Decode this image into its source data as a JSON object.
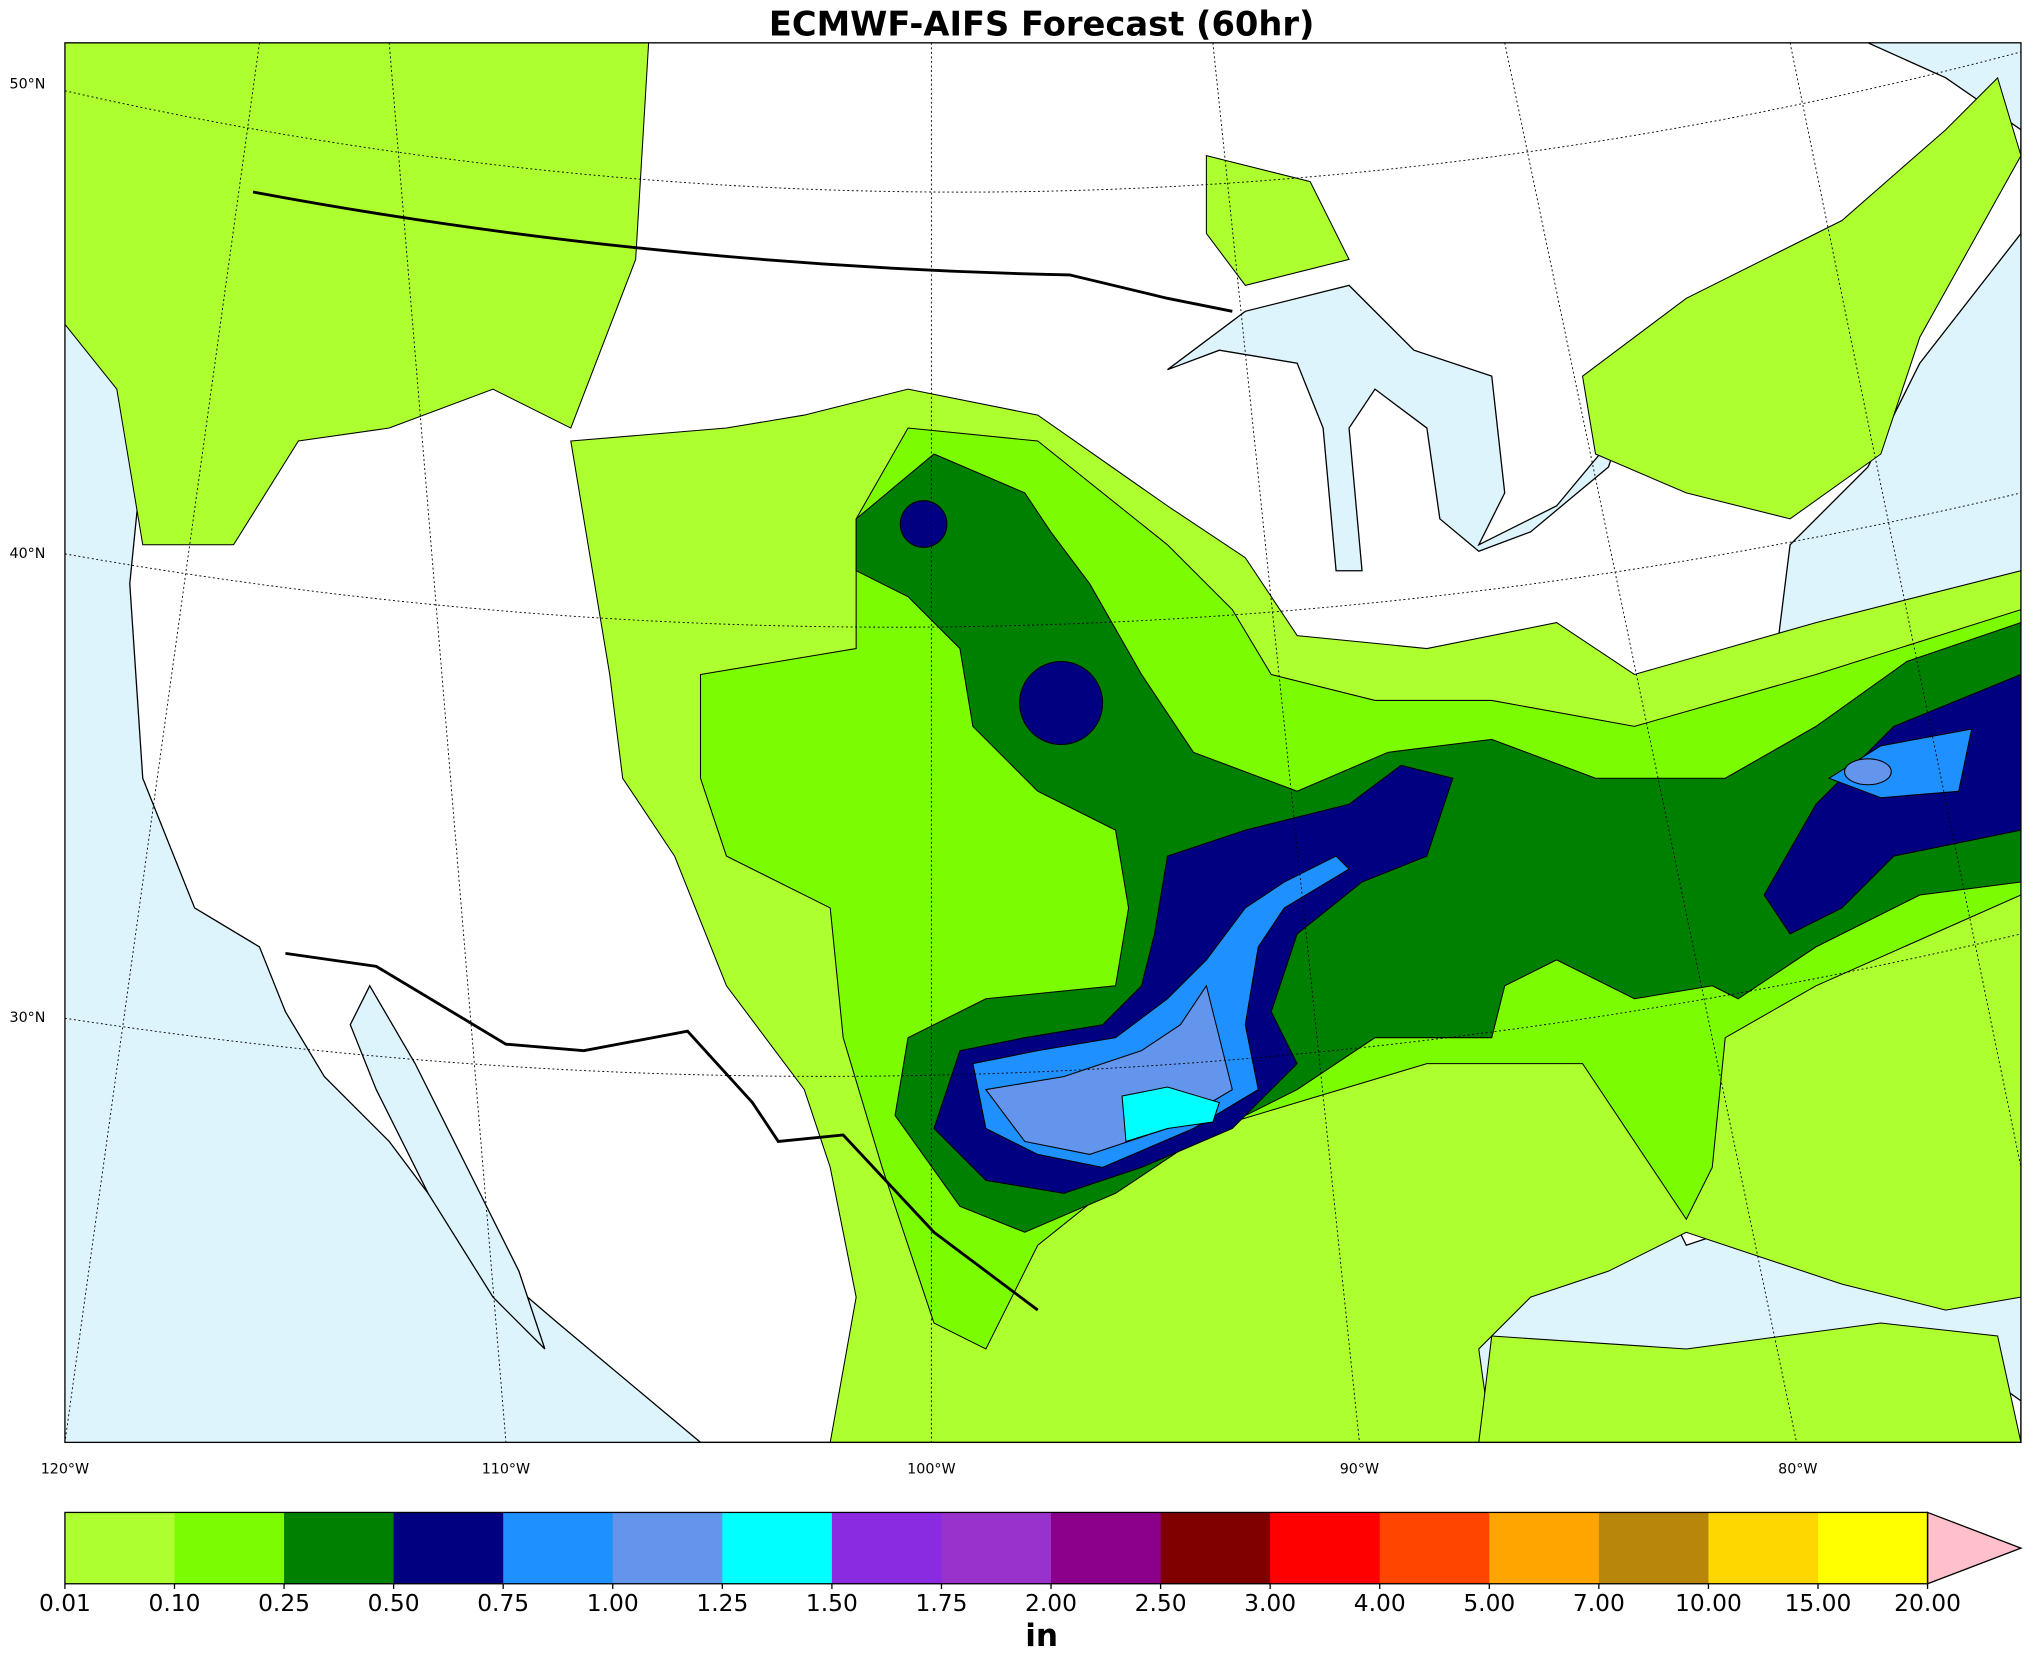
{
  "title": "ECMWF-AIFS Forecast (60hr)",
  "map": {
    "lat_labels": [
      "50°N",
      "40°N",
      "30°N"
    ],
    "lon_labels": [
      "120°W",
      "110°W",
      "100°W",
      "90°W",
      "80°W"
    ]
  },
  "colorbar": {
    "levels": [
      0.01,
      {
        "value": 0.1,
        "label": "0.10"
      },
      0.25,
      {
        "value": 0.5,
        "label": "0.50"
      },
      0.75,
      {
        "value": 1,
        "label": "1.00"
      },
      1.25,
      {
        "value": 1.5,
        "label": "1.50"
      },
      1.75,
      {
        "value": 2,
        "label": "2.00"
      },
      {
        "value": 2.5,
        "label": "2.50"
      },
      {
        "value": 3,
        "label": "3.00"
      },
      {
        "value": 4,
        "label": "4.00"
      },
      {
        "value": 5,
        "label": "5.00"
      },
      {
        "value": 7,
        "label": "7.00"
      },
      {
        "value": 10,
        "label": "10.00"
      },
      {
        "value": 15,
        "label": "15.00"
      },
      {
        "value": 20,
        "label": "20.00"
      }
    ],
    "colors": [
      "#adff2f",
      "#7cfc00",
      "#008000",
      "#000080",
      "#1e90ff",
      "#6495ed",
      "#00ffff",
      "#8a2be2",
      "#9932cc",
      "#8b008b",
      "#800000",
      "#ff0000",
      "#ff4500",
      "#ffa500",
      "#b8860b",
      "#ffd700",
      "#ffff00"
    ],
    "extend_color": "#ffc0cb",
    "unit": "in"
  }
}
